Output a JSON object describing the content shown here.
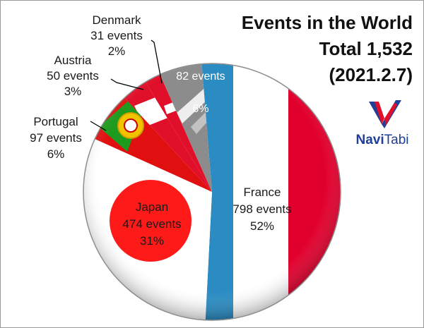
{
  "header": {
    "title": "Events in the World",
    "subtitle": "Total 1,532",
    "date": "(2021.2.7)"
  },
  "logo": {
    "brand_bold": "Navi",
    "brand_rest": "Tabi",
    "icon": "navitabi-logo",
    "colors": {
      "blue": "#1f3f99",
      "red": "#e0102a"
    }
  },
  "chart_data": {
    "type": "pie",
    "title": "Events in the World",
    "total": 1532,
    "date": "2021.2.7",
    "slices": [
      {
        "name": "France",
        "value": 798,
        "label": "798 events",
        "percent": "52%",
        "color": "flag-france"
      },
      {
        "name": "Japan",
        "value": 474,
        "label": "474 events",
        "percent": "31%",
        "color": "flag-japan"
      },
      {
        "name": "Portugal",
        "value": 97,
        "label": "97 events",
        "percent": "6%",
        "color": "flag-portugal"
      },
      {
        "name": "Austria",
        "value": 50,
        "label": "50 events",
        "percent": "3%",
        "color": "flag-austria"
      },
      {
        "name": "Denmark",
        "value": 31,
        "label": "31 events",
        "percent": "2%",
        "color": "flag-denmark"
      },
      {
        "name": "",
        "value": 82,
        "label": "82 events",
        "percent": "6%",
        "color": "#8a8a8a"
      }
    ]
  }
}
